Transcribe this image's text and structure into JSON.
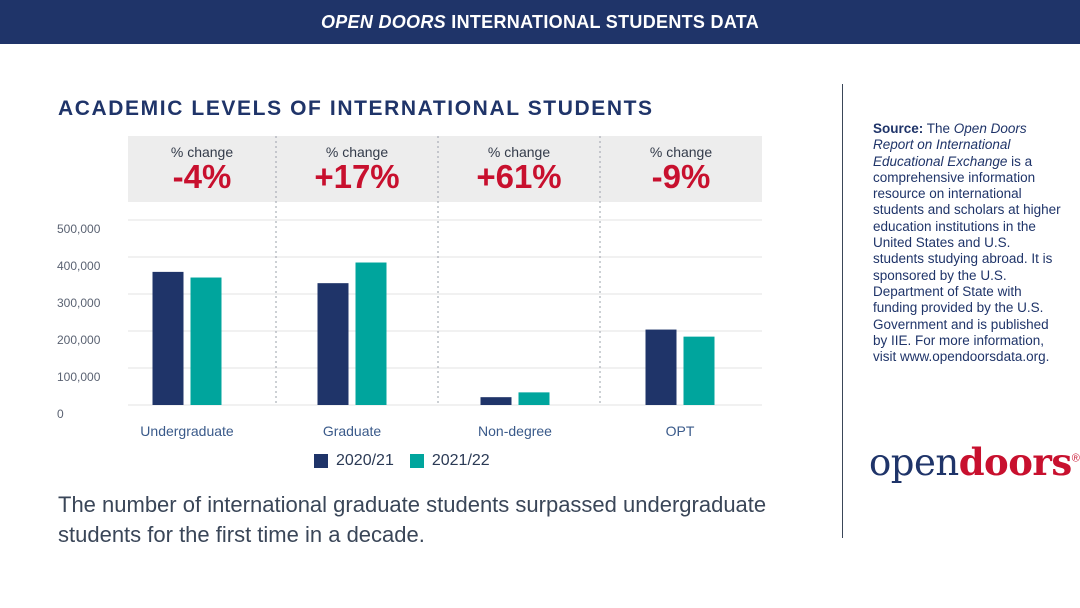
{
  "header": {
    "title_italic": "OPEN DOORS",
    "title_rest": "INTERNATIONAL STUDENTS DATA"
  },
  "colors": {
    "navy": "#1f3469",
    "teal": "#00a59d",
    "red": "#c8102e"
  },
  "changes": [
    {
      "label": "% change",
      "value": "-4%"
    },
    {
      "label": "% change",
      "value": "+17%"
    },
    {
      "label": "% change",
      "value": "+61%"
    },
    {
      "label": "% change",
      "value": "-9%"
    }
  ],
  "chart_data": {
    "type": "bar",
    "title": "ACADEMIC LEVELS OF INTERNATIONAL STUDENTS",
    "categories": [
      "Undergraduate",
      "Graduate",
      "Non-degree",
      "OPT"
    ],
    "series": [
      {
        "name": "2020/21",
        "color": "#1f3469",
        "values": [
          359787,
          329272,
          21151,
          203885
        ]
      },
      {
        "name": "2021/22",
        "color": "#00a59d",
        "values": [
          344532,
          385097,
          34131,
          184759
        ]
      }
    ],
    "yticks": [
      0,
      100000,
      200000,
      300000,
      400000,
      500000
    ],
    "ytick_labels": [
      "0",
      "100,000",
      "200,000",
      "300,000",
      "400,000",
      "500,000"
    ],
    "ylim": [
      0,
      500000
    ],
    "legend_position": "bottom-center",
    "grid": true
  },
  "caption": "The number of international graduate students surpassed undergraduate students for the first time in a decade.",
  "source": {
    "label": "Source:",
    "text_1": " The ",
    "italic": "Open Doors Report on International Educational Exchange",
    "text_2": " is a comprehensive information resource on international students and scholars at higher education institutions in the United States and U.S. students studying abroad. It is sponsored by the U.S. Department of State with funding provided by the U.S. Government and is published by IIE. For more information, visit www.opendoorsdata.org."
  },
  "logo": {
    "part1": "open",
    "part2": "doors",
    "reg": "®"
  }
}
